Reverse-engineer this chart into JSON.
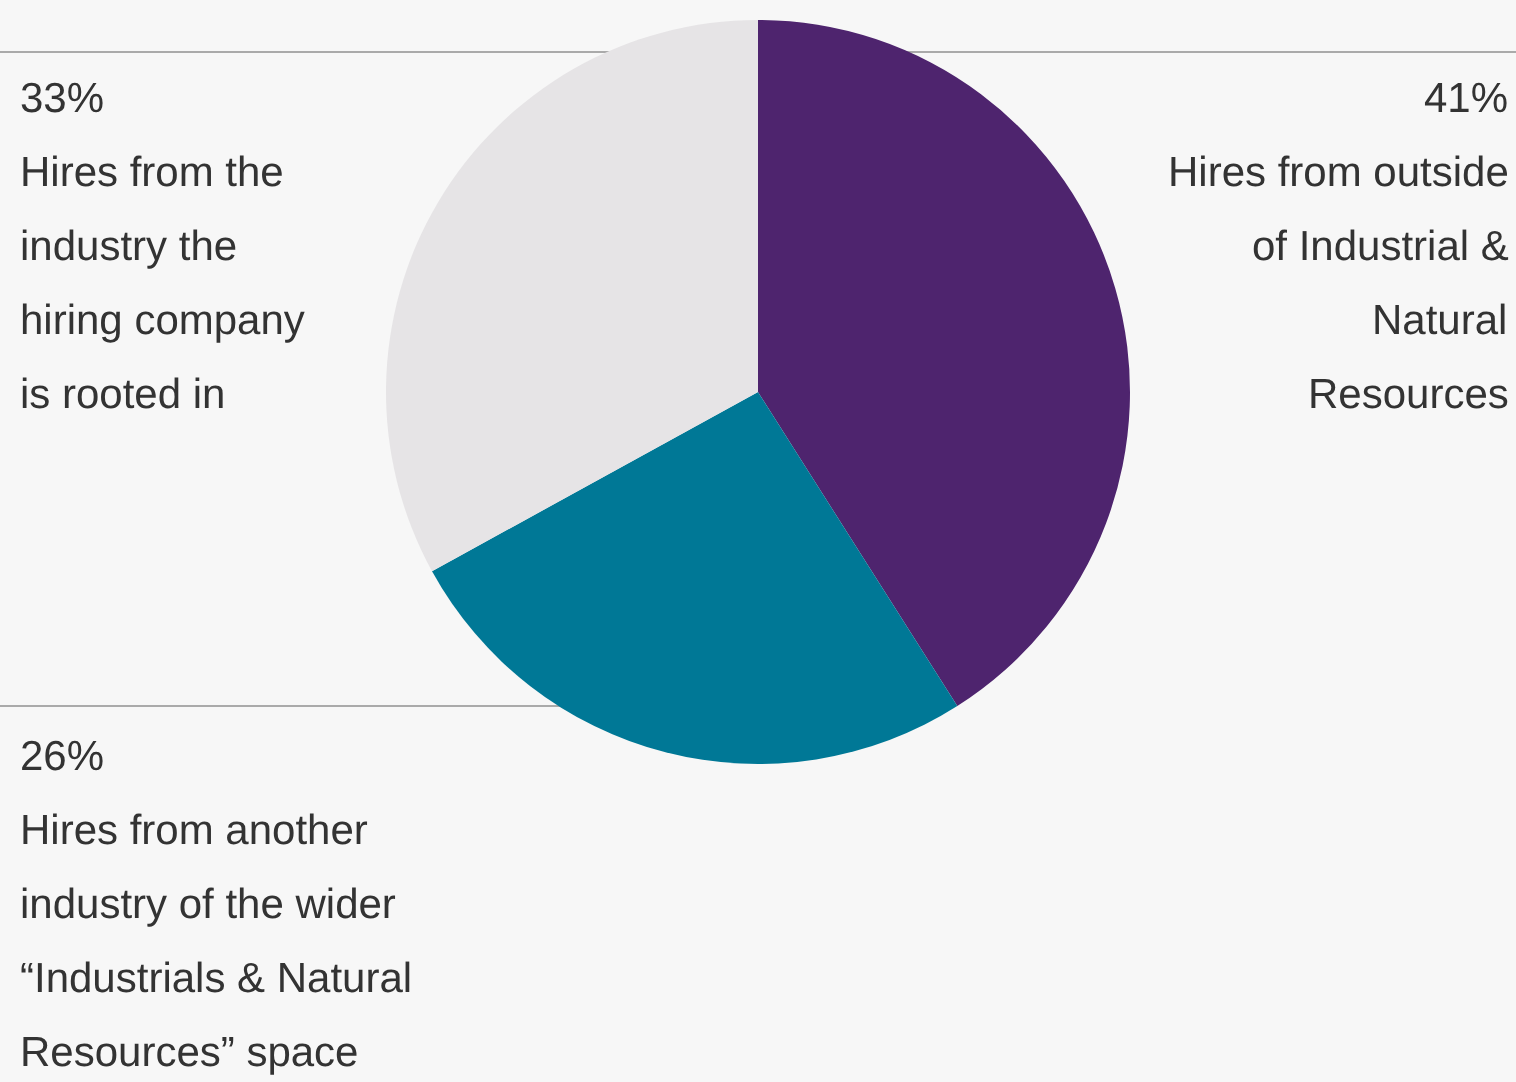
{
  "chart_data": {
    "type": "pie",
    "categories": [
      "Hires from outside\nof Industrial &\nNatural\nResources",
      "Hires from another\nindustry of the wider\n“Industrials & Natural\nResources” space",
      "Hires from the\nindustry the\nhiring company\nis rooted in"
    ],
    "values": [
      41,
      26,
      33
    ],
    "value_labels": [
      "41%",
      "26%",
      "33%"
    ],
    "colors": [
      "#4e246e",
      "#007896",
      "#e6e4e6"
    ],
    "legend": false
  }
}
